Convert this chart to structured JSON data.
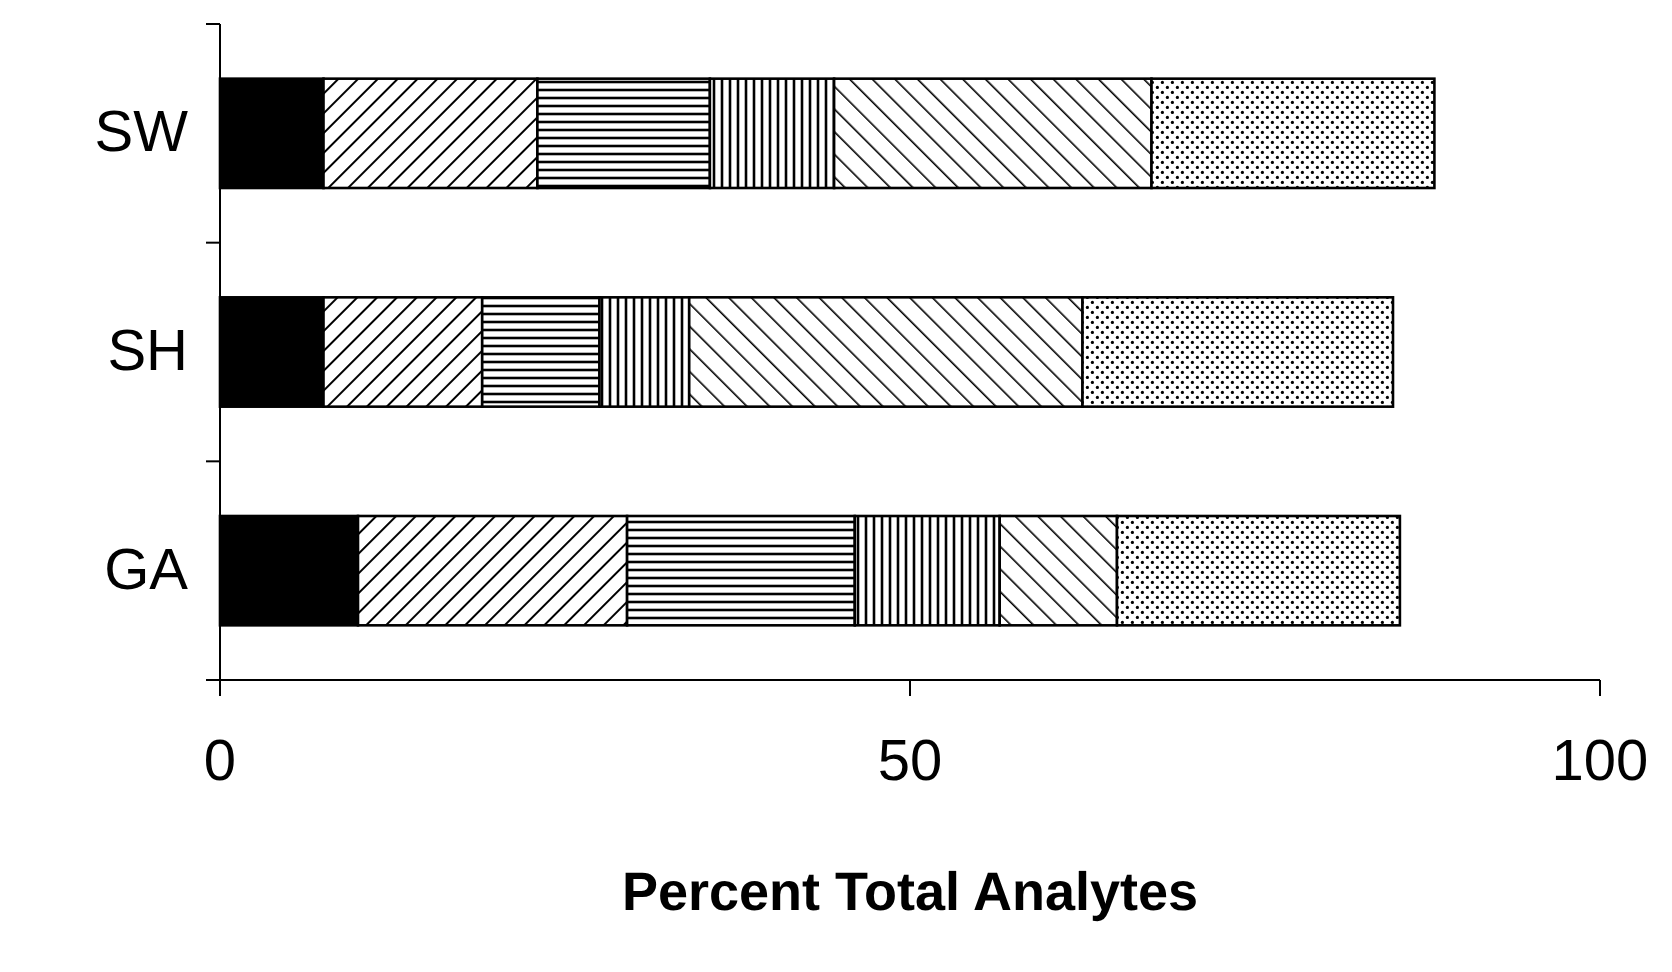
{
  "chart_data": {
    "type": "bar",
    "orientation": "horizontal",
    "stacked": true,
    "xlabel": "Percent Total Analytes",
    "categories": [
      "SW",
      "SH",
      "GA"
    ],
    "series": [
      {
        "color": "#000000",
        "values": [
          7.5,
          7.5,
          10
        ]
      },
      {
        "color": "#000000",
        "values": [
          15.5,
          11.5,
          19.5
        ]
      },
      {
        "color": "#000000",
        "values": [
          12.5,
          8.5,
          16.5
        ]
      },
      {
        "color": "#000000",
        "values": [
          9,
          6.5,
          10.5
        ]
      },
      {
        "color": "#000000",
        "values": [
          23,
          28.5,
          8.5
        ]
      },
      {
        "color": "#000000",
        "values": [
          20.5,
          22.5,
          20.5
        ]
      }
    ],
    "xlim": [
      0,
      100
    ],
    "xticks": [
      0,
      50,
      100
    ],
    "grid": false
  }
}
